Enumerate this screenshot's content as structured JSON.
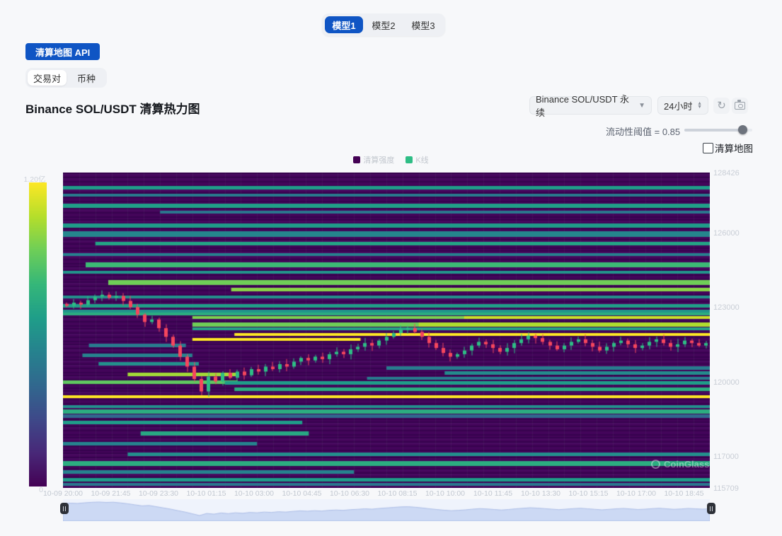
{
  "model_tabs": {
    "items": [
      {
        "label": "模型1",
        "active": true
      },
      {
        "label": "模型2",
        "active": false
      },
      {
        "label": "模型3",
        "active": false
      }
    ]
  },
  "api_button": {
    "label": "清算地图 API"
  },
  "scope_tabs": {
    "items": [
      {
        "label": "交易对",
        "active": true
      },
      {
        "label": "币种",
        "active": false
      }
    ]
  },
  "header": {
    "title": "Binance SOL/USDT 清算热力图"
  },
  "controls": {
    "pair_select": {
      "value": "Binance SOL/USDT 永续"
    },
    "interval_select": {
      "value": "24小时"
    },
    "threshold": {
      "label": "流动性阈值 = 0.85",
      "value": 0.85
    },
    "map_checkbox": {
      "label": "清算地图",
      "checked": false
    }
  },
  "legend": {
    "items": [
      {
        "label": "清算强度",
        "color": "#440154"
      },
      {
        "label": "K线",
        "color": "#2ebd85"
      }
    ]
  },
  "colorbar": {
    "max_label": "1.20亿",
    "min_label": "0"
  },
  "watermark": {
    "text": "CoinGlass"
  },
  "chart_data": {
    "type": "heatmap",
    "title": "Binance SOL/USDT 清算热力图",
    "legend_position": "top-center",
    "grid": false,
    "y_axis": {
      "min": 115709,
      "max": 128426,
      "ticks": [
        128426,
        126000,
        123000,
        120000,
        117000,
        115709
      ]
    },
    "x_ticks": [
      "10-09 20:00",
      "10-09 21:45",
      "10-09 23:30",
      "10-10 01:15",
      "10-10 03:00",
      "10-10 04:45",
      "10-10 06:30",
      "10-10 08:15",
      "10-10 10:00",
      "10-10 11:45",
      "10-10 13:30",
      "10-10 15:15",
      "10-10 17:00",
      "10-10 18:45"
    ],
    "palette": [
      "#440154",
      "#482878",
      "#3e4989",
      "#31688e",
      "#26828e",
      "#1f9e89",
      "#35b779",
      "#6ece58",
      "#b5de2b",
      "#fde725"
    ],
    "heat_max_label": "1.20亿",
    "heat_bands": [
      [
        127800,
        0,
        1,
        0.55,
        5
      ],
      [
        127520,
        0,
        1,
        0.42,
        4
      ],
      [
        127100,
        0,
        1,
        0.56,
        6
      ],
      [
        126840,
        0.15,
        1,
        0.4,
        4
      ],
      [
        126280,
        0,
        1,
        0.55,
        6
      ],
      [
        125950,
        0,
        1,
        0.46,
        8
      ],
      [
        125550,
        0.05,
        1,
        0.58,
        5
      ],
      [
        125120,
        0,
        1,
        0.44,
        4
      ],
      [
        124700,
        0.035,
        1,
        0.68,
        7
      ],
      [
        124400,
        0,
        1,
        0.52,
        4
      ],
      [
        123980,
        0.07,
        1,
        0.78,
        7
      ],
      [
        123700,
        0.26,
        1,
        0.82,
        5
      ],
      [
        123420,
        0,
        1,
        0.5,
        4
      ],
      [
        123060,
        0,
        1,
        0.56,
        5
      ],
      [
        122850,
        0,
        1,
        0.52,
        4
      ],
      [
        122725,
        0,
        1,
        0.62,
        4
      ],
      [
        122583,
        0.2,
        1,
        0.8,
        4
      ],
      [
        122583,
        0.62,
        1,
        0.92,
        4
      ],
      [
        122297,
        0.2,
        1,
        0.78,
        6
      ],
      [
        122297,
        0.55,
        1,
        0.88,
        6
      ],
      [
        122126,
        0.2,
        1,
        0.58,
        4
      ],
      [
        121898,
        0.265,
        1,
        1.0,
        4
      ],
      [
        121690,
        0.2,
        0.46,
        1.0,
        4
      ],
      [
        121450,
        0.04,
        0.19,
        0.42,
        5
      ],
      [
        121050,
        0.03,
        0.2,
        0.45,
        5
      ],
      [
        120700,
        0.055,
        0.21,
        0.5,
        5
      ],
      [
        120550,
        0.5,
        1,
        0.42,
        5
      ],
      [
        120330,
        0.59,
        1,
        0.48,
        5
      ],
      [
        120120,
        0.47,
        1,
        0.42,
        4
      ],
      [
        120280,
        0.1,
        0.27,
        0.86,
        5
      ],
      [
        119960,
        0,
        0.27,
        0.75,
        5
      ],
      [
        119930,
        0.25,
        1,
        0.55,
        5
      ],
      [
        119700,
        0.265,
        1,
        0.62,
        5
      ],
      [
        119380,
        0,
        1,
        1.0,
        4
      ],
      [
        118988,
        0,
        1,
        0.5,
        4
      ],
      [
        118788,
        0,
        1,
        0.62,
        6
      ],
      [
        118617,
        0,
        1,
        0.33,
        5
      ],
      [
        118350,
        0,
        0.37,
        0.55,
        5
      ],
      [
        117900,
        0.12,
        0.38,
        0.6,
        6
      ],
      [
        117500,
        0,
        0.3,
        0.45,
        5
      ],
      [
        117050,
        0.1,
        1,
        0.5,
        5
      ],
      [
        116700,
        0,
        1,
        0.62,
        7
      ],
      [
        116350,
        0,
        0.45,
        0.45,
        5
      ],
      [
        116050,
        0,
        1,
        0.55,
        5
      ],
      [
        115850,
        0,
        1,
        0.4,
        4
      ]
    ],
    "candles": {
      "up_color": "#2ebd85",
      "down_color": "#f6465d",
      "closes": [
        123050,
        123180,
        123100,
        123280,
        123420,
        123500,
        123380,
        123450,
        123250,
        123000,
        122700,
        122400,
        122500,
        122150,
        121800,
        121450,
        121000,
        120600,
        120100,
        119600,
        120200,
        120000,
        120350,
        120150,
        120400,
        120250,
        120500,
        120400,
        120600,
        120500,
        120700,
        120600,
        120800,
        120950,
        120850,
        121000,
        120900,
        121100,
        121200,
        121100,
        121300,
        121400,
        121550,
        121450,
        121650,
        121800,
        121950,
        122100,
        122150,
        122000,
        121800,
        121550,
        121350,
        121150,
        121000,
        121100,
        121250,
        121450,
        121600,
        121500,
        121350,
        121200,
        121350,
        121550,
        121700,
        121850,
        121750,
        121600,
        121450,
        121300,
        121450,
        121600,
        121700,
        121550,
        121400,
        121250,
        121400,
        121550,
        121650,
        121500,
        121350,
        121450,
        121600,
        121700,
        121550,
        121400,
        121500,
        121650,
        121550,
        121450,
        121550
      ]
    },
    "navigator": {
      "fill": "#ccd9f4",
      "line": "#aebfe8",
      "bg": "#eff3fc",
      "range_min": 119200,
      "range_max": 123700
    }
  }
}
